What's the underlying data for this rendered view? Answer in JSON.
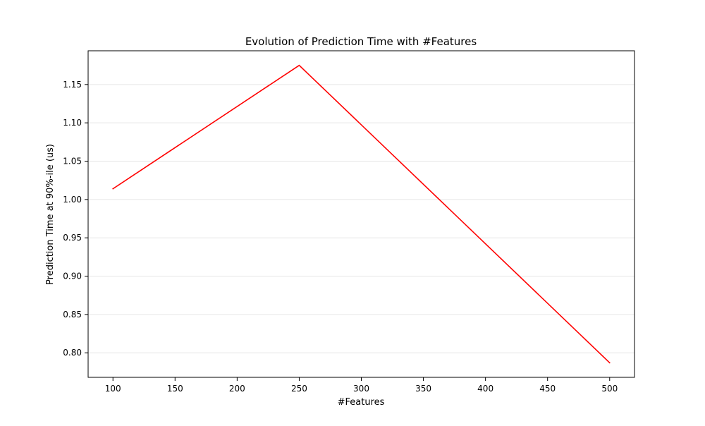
{
  "chart_data": {
    "type": "line",
    "title": "Evolution of Prediction Time with #Features",
    "xlabel": "#Features",
    "ylabel": "Prediction Time at 90%-ile (us)",
    "x": [
      100,
      250,
      500
    ],
    "series": [
      {
        "values": [
          1.014,
          1.175,
          0.787
        ],
        "color": "#ff0000"
      }
    ],
    "xlim": [
      80,
      520
    ],
    "ylim": [
      0.768,
      1.194
    ],
    "x_ticks": [
      100,
      150,
      200,
      250,
      300,
      350,
      400,
      450,
      500
    ],
    "x_tick_labels": [
      "100",
      "150",
      "200",
      "250",
      "300",
      "350",
      "400",
      "450",
      "500"
    ],
    "y_ticks": [
      0.8,
      0.85,
      0.9,
      0.95,
      1.0,
      1.05,
      1.1,
      1.15
    ],
    "y_tick_labels": [
      "0.80",
      "0.85",
      "0.90",
      "0.95",
      "1.00",
      "1.05",
      "1.10",
      "1.15"
    ],
    "grid": "horizontal",
    "grid_color": "#e6e6e6",
    "axis_color": "#000000"
  }
}
